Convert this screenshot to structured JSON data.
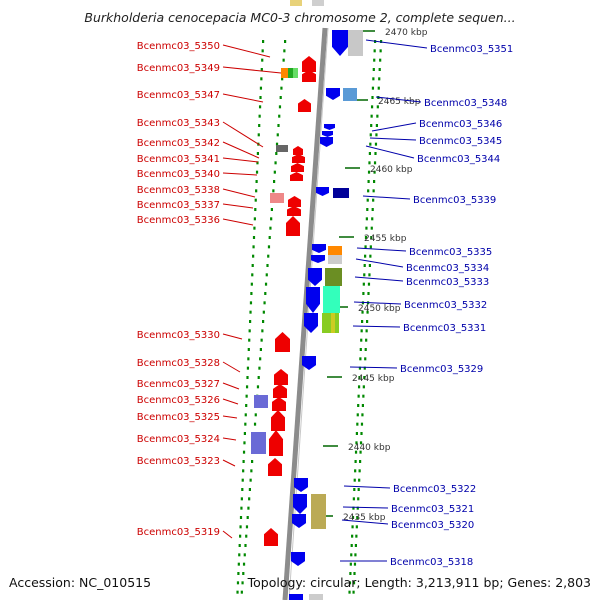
{
  "header": {
    "title": "Burkholderia cenocepacia MC0-3 chromosome 2, complete sequen..."
  },
  "footer": {
    "accession": "Accession: NC_010515",
    "summary": "Topology: circular; Length: 3,213,911 bp; Genes: 2,803"
  },
  "scale": {
    "ticks": [
      "2470 kbp",
      "2465 kbp",
      "2460 kbp",
      "2455 kbp",
      "2450 kbp",
      "2445 kbp",
      "2440 kbp",
      "2435 kbp"
    ]
  },
  "colors": {
    "left_label": "#cc0000",
    "right_label": "#0000aa",
    "forward_gene": "#ee0000",
    "reverse_gene": "#0000ee",
    "axis": "#888888",
    "dots": "#008800"
  },
  "genes_left": [
    {
      "label": "Bcenmc03_5350"
    },
    {
      "label": "Bcenmc03_5349"
    },
    {
      "label": "Bcenmc03_5347"
    },
    {
      "label": "Bcenmc03_5343"
    },
    {
      "label": "Bcenmc03_5342"
    },
    {
      "label": "Bcenmc03_5341"
    },
    {
      "label": "Bcenmc03_5340"
    },
    {
      "label": "Bcenmc03_5338"
    },
    {
      "label": "Bcenmc03_5337"
    },
    {
      "label": "Bcenmc03_5336"
    },
    {
      "label": "Bcenmc03_5330"
    },
    {
      "label": "Bcenmc03_5328"
    },
    {
      "label": "Bcenmc03_5327"
    },
    {
      "label": "Bcenmc03_5326"
    },
    {
      "label": "Bcenmc03_5325"
    },
    {
      "label": "Bcenmc03_5324"
    },
    {
      "label": "Bcenmc03_5323"
    },
    {
      "label": "Bcenmc03_5319"
    }
  ],
  "genes_right": [
    {
      "label": "Bcenmc03_5351"
    },
    {
      "label": "Bcenmc03_5348"
    },
    {
      "label": "Bcenmc03_5346"
    },
    {
      "label": "Bcenmc03_5345"
    },
    {
      "label": "Bcenmc03_5344"
    },
    {
      "label": "Bcenmc03_5339"
    },
    {
      "label": "Bcenmc03_5335"
    },
    {
      "label": "Bcenmc03_5334"
    },
    {
      "label": "Bcenmc03_5333"
    },
    {
      "label": "Bcenmc03_5332"
    },
    {
      "label": "Bcenmc03_5331"
    },
    {
      "label": "Bcenmc03_5329"
    },
    {
      "label": "Bcenmc03_5322"
    },
    {
      "label": "Bcenmc03_5321"
    },
    {
      "label": "Bcenmc03_5320"
    },
    {
      "label": "Bcenmc03_5318"
    }
  ]
}
